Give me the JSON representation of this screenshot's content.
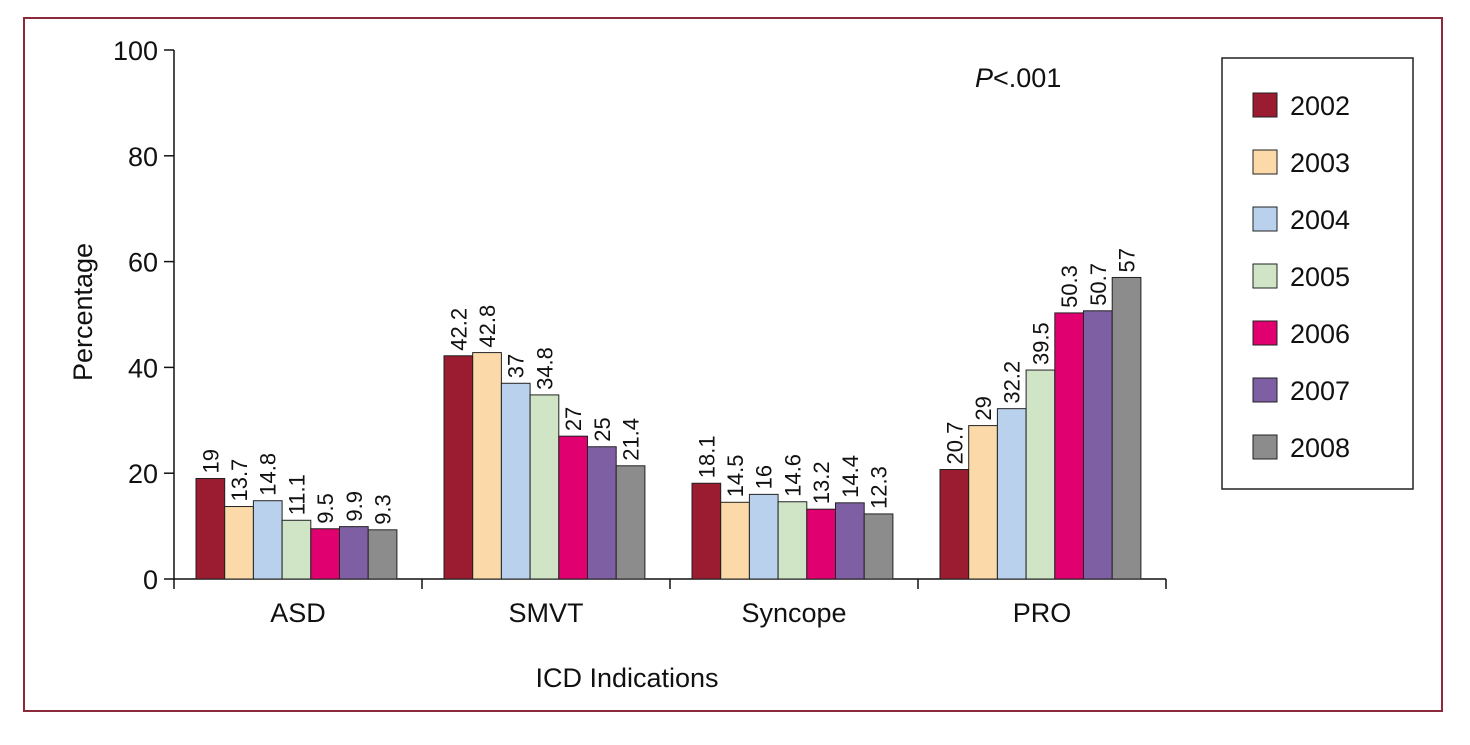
{
  "chart_data": {
    "type": "bar",
    "title": "",
    "xlabel": "ICD Indications",
    "ylabel": "Percentage",
    "ylim": [
      0,
      100
    ],
    "yticks": [
      0,
      20,
      40,
      60,
      80,
      100
    ],
    "grid": false,
    "legend_position": "right",
    "annotation": {
      "prefix": "P",
      "text": "<.001"
    },
    "categories": [
      "ASD",
      "SMVT",
      "Syncope",
      "PRO"
    ],
    "series": [
      {
        "name": "2002",
        "color": "#9b1b30",
        "values": [
          19,
          42.2,
          18.1,
          20.7
        ]
      },
      {
        "name": "2003",
        "color": "#fbd9a8",
        "values": [
          13.7,
          42.8,
          14.5,
          29
        ]
      },
      {
        "name": "2004",
        "color": "#b9d1ec",
        "values": [
          14.8,
          37,
          16,
          32.2
        ]
      },
      {
        "name": "2005",
        "color": "#cfe5c5",
        "values": [
          11.1,
          34.8,
          14.6,
          39.5
        ]
      },
      {
        "name": "2006",
        "color": "#e0006f",
        "values": [
          9.5,
          27,
          13.2,
          50.3
        ]
      },
      {
        "name": "2007",
        "color": "#7f5fa3",
        "values": [
          9.9,
          25,
          14.4,
          50.7
        ]
      },
      {
        "name": "2008",
        "color": "#8c8c8c",
        "values": [
          9.3,
          21.4,
          12.3,
          57
        ]
      }
    ]
  }
}
